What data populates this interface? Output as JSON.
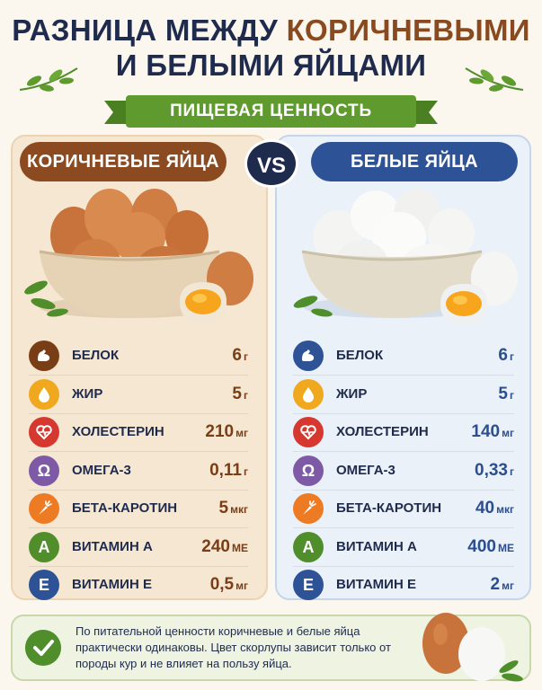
{
  "title": {
    "line1_dark": "РАЗНИЦА МЕЖДУ",
    "line1_brown": "КОРИЧНЕВЫМИ",
    "line2": "И БЕЛЫМИ ЯЙЦАМИ"
  },
  "subtitle": "ПИЩЕВАЯ ЦЕННОСТЬ",
  "vs": "VS",
  "colors": {
    "brown_accent": "#8b4a20",
    "blue_accent": "#2d5296",
    "green_accent": "#5f9a2e",
    "title_dark": "#1f2b4d"
  },
  "brown": {
    "label": "КОРИЧНЕВЫЕ ЯЙЦА",
    "nutrients": [
      {
        "icon": "muscle-icon",
        "name": "БЕЛОК",
        "value": "6",
        "unit": "г"
      },
      {
        "icon": "drop-icon",
        "name": "ЖИР",
        "value": "5",
        "unit": "г"
      },
      {
        "icon": "heart-pulse-icon",
        "name": "ХОЛЕСТЕРИН",
        "value": "210",
        "unit": "мг"
      },
      {
        "icon": "omega-icon",
        "name": "ОМЕГА-3",
        "value": "0,11",
        "unit": "г"
      },
      {
        "icon": "carrot-icon",
        "name": "БЕТА-КАРОТИН",
        "value": "5",
        "unit": "мкг"
      },
      {
        "icon": "letter-a-icon",
        "name": "ВИТАМИН А",
        "value": "240",
        "unit": "МЕ"
      },
      {
        "icon": "letter-e-icon",
        "name": "ВИТАМИН Е",
        "value": "0,5",
        "unit": "мг"
      }
    ]
  },
  "white": {
    "label": "БЕЛЫЕ ЯЙЦА",
    "nutrients": [
      {
        "icon": "muscle-icon",
        "name": "БЕЛОК",
        "value": "6",
        "unit": "г"
      },
      {
        "icon": "drop-icon",
        "name": "ЖИР",
        "value": "5",
        "unit": "г"
      },
      {
        "icon": "heart-pulse-icon",
        "name": "ХОЛЕСТЕРИН",
        "value": "140",
        "unit": "мг"
      },
      {
        "icon": "omega-icon",
        "name": "ОМЕГА-3",
        "value": "0,33",
        "unit": "г"
      },
      {
        "icon": "carrot-icon",
        "name": "БЕТА-КАРОТИН",
        "value": "40",
        "unit": "мкг"
      },
      {
        "icon": "letter-a-icon",
        "name": "ВИТАМИН А",
        "value": "400",
        "unit": "МЕ"
      },
      {
        "icon": "letter-e-icon",
        "name": "ВИТАМИН Е",
        "value": "2",
        "unit": "мг"
      }
    ]
  },
  "icon_letters": {
    "omega": "Ω",
    "a": "A",
    "e": "E"
  },
  "footer": {
    "text": "По питательной ценности коричневые и белые яйца практически одинаковы. Цвет скорлупы зависит только от породы кур и не влияет на пользу яйца."
  }
}
